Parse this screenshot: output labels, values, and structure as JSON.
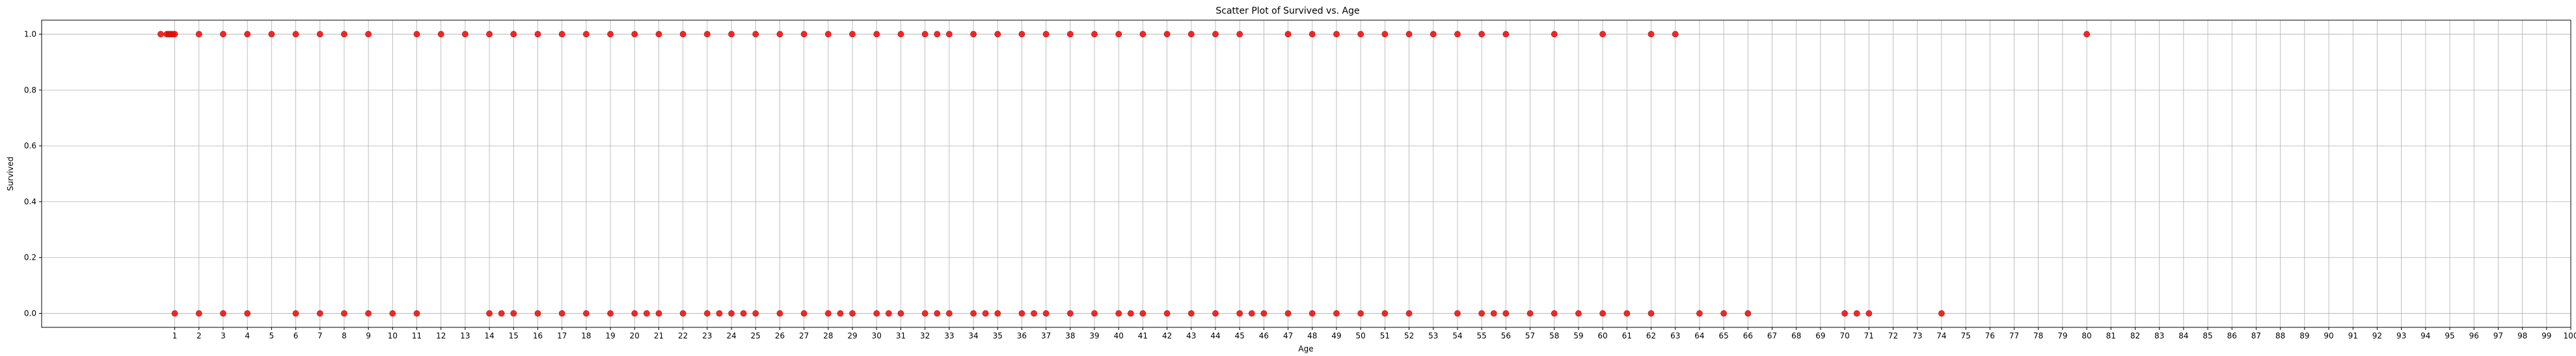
{
  "chart_data": {
    "type": "scatter",
    "title": "Scatter Plot of Survived vs. Age",
    "xlabel": "Age",
    "ylabel": "Survived",
    "xlim": [
      -4.5,
      100
    ],
    "ylim": [
      -0.05,
      1.05
    ],
    "xticks": [
      1,
      2,
      3,
      4,
      5,
      6,
      7,
      8,
      9,
      10,
      11,
      12,
      13,
      14,
      15,
      16,
      17,
      18,
      19,
      20,
      21,
      22,
      23,
      24,
      25,
      26,
      27,
      28,
      29,
      30,
      31,
      32,
      33,
      34,
      35,
      36,
      37,
      38,
      39,
      40,
      41,
      42,
      43,
      44,
      45,
      46,
      47,
      48,
      49,
      50,
      51,
      52,
      53,
      54,
      55,
      56,
      57,
      58,
      59,
      60,
      61,
      62,
      63,
      64,
      65,
      66,
      67,
      68,
      69,
      70,
      71,
      72,
      73,
      74,
      75,
      76,
      77,
      78,
      79,
      80,
      81,
      82,
      83,
      84,
      85,
      86,
      87,
      88,
      89,
      90,
      91,
      92,
      93,
      94,
      95,
      96,
      97,
      98,
      99,
      100
    ],
    "yticks": [
      0.0,
      0.2,
      0.4,
      0.6,
      0.8,
      1.0
    ],
    "ytick_labels": [
      "0.0",
      "0.2",
      "0.4",
      "0.6",
      "0.8",
      "1.0"
    ],
    "grid": true,
    "marker_color": "#ff0000",
    "marker_edge_color": "#aa2222",
    "points": {
      "survived_1": [
        0.42,
        0.67,
        0.75,
        0.83,
        0.92,
        1,
        2,
        3,
        4,
        5,
        6,
        7,
        8,
        9,
        11,
        12,
        13,
        14,
        15,
        16,
        17,
        18,
        19,
        20,
        21,
        22,
        23,
        24,
        25,
        26,
        27,
        28,
        29,
        30,
        31,
        32,
        32.5,
        33,
        34,
        35,
        36,
        37,
        38,
        39,
        40,
        41,
        42,
        43,
        44,
        45,
        47,
        48,
        49,
        50,
        51,
        52,
        53,
        54,
        55,
        56,
        58,
        60,
        62,
        63,
        80
      ],
      "survived_0": [
        1,
        2,
        3,
        4,
        6,
        7,
        8,
        9,
        10,
        11,
        14,
        14.5,
        15,
        16,
        17,
        18,
        19,
        20,
        20.5,
        21,
        22,
        23,
        23.5,
        24,
        24.5,
        25,
        26,
        27,
        28,
        28.5,
        29,
        30,
        30.5,
        31,
        32,
        32.5,
        33,
        34,
        34.5,
        35,
        36,
        36.5,
        37,
        38,
        39,
        40,
        40.5,
        41,
        42,
        43,
        44,
        45,
        45.5,
        46,
        47,
        48,
        49,
        50,
        51,
        52,
        54,
        55,
        55.5,
        56,
        57,
        58,
        59,
        60,
        61,
        62,
        64,
        65,
        66,
        70,
        70.5,
        71,
        74
      ]
    }
  }
}
